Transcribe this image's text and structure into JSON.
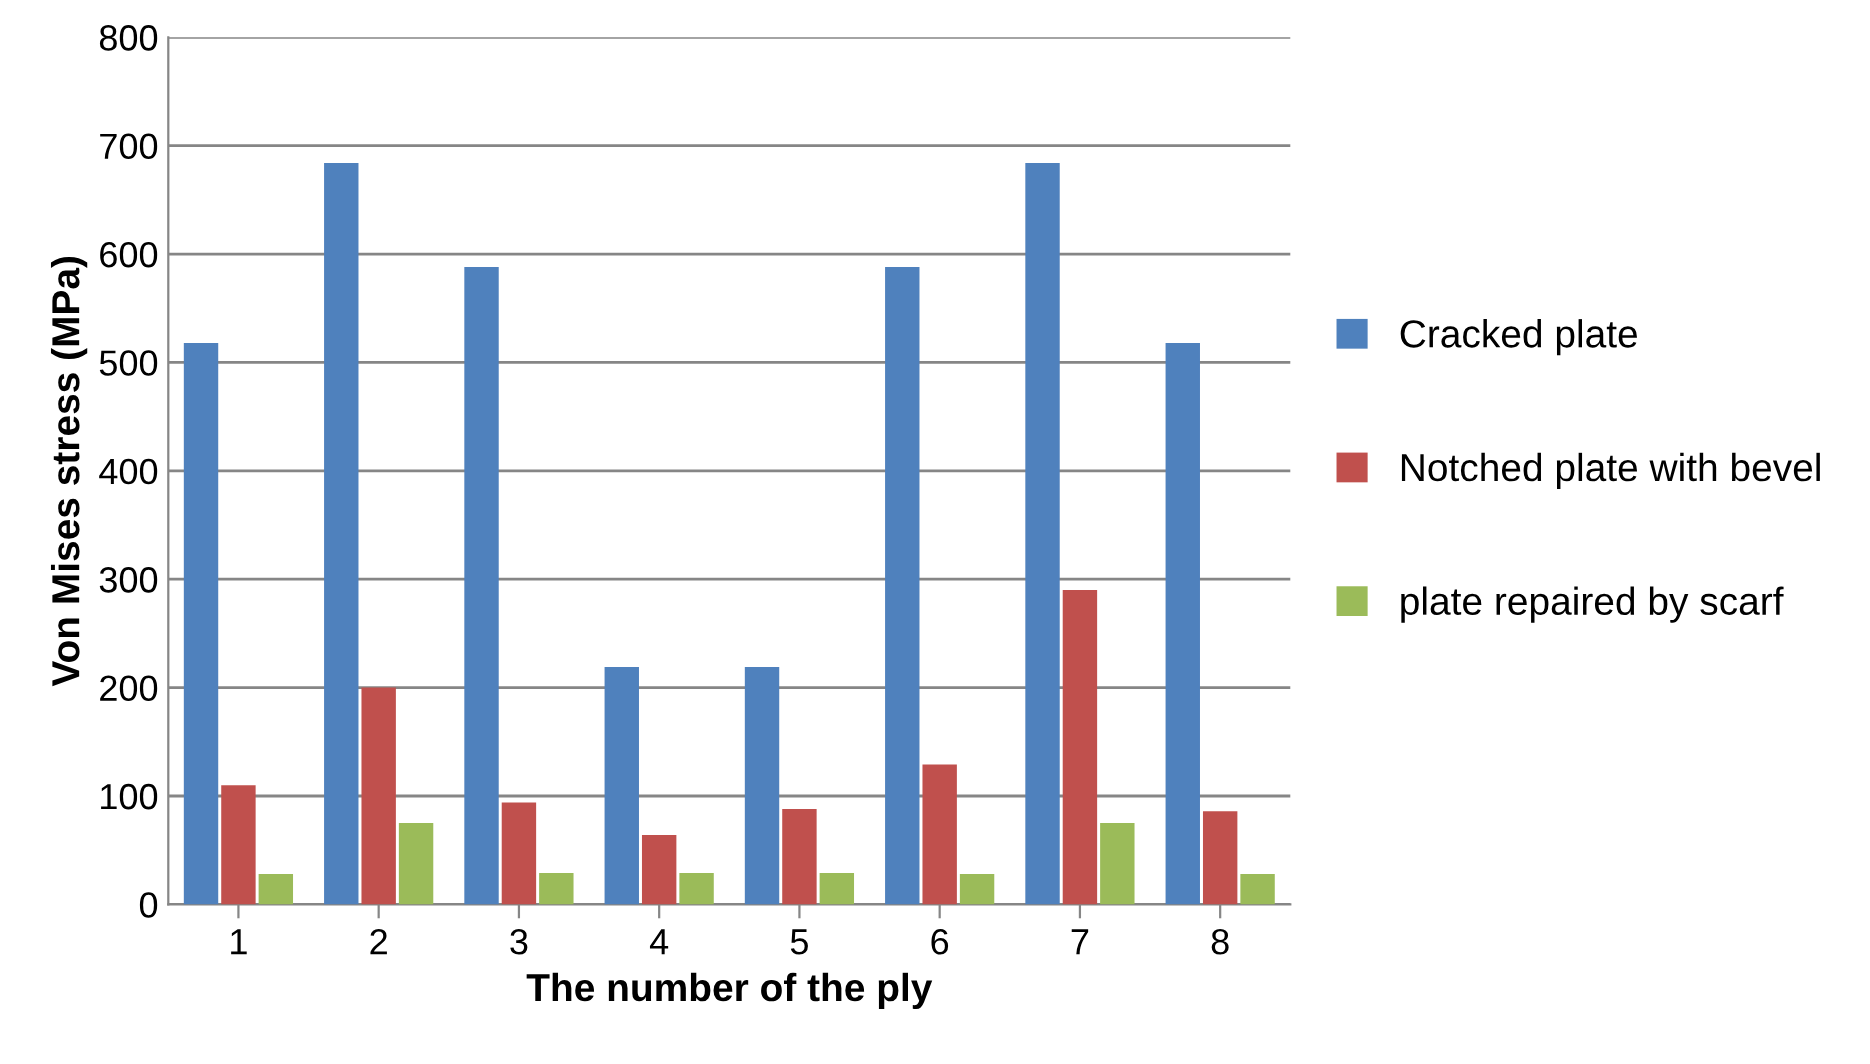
{
  "chart_data": {
    "type": "bar",
    "xlabel": "The number of the ply",
    "ylabel": "Von Mises stress (MPa)",
    "categories": [
      "1",
      "2",
      "3",
      "4",
      "5",
      "6",
      "7",
      "8"
    ],
    "series": [
      {
        "name": "Cracked plate",
        "color": "#4f81bd",
        "values": [
          518,
          684,
          588,
          219,
          219,
          588,
          684,
          518
        ]
      },
      {
        "name": "Notched plate with bevel",
        "color": "#c0504d",
        "values": [
          110,
          200,
          94,
          64,
          88,
          129,
          290,
          86
        ]
      },
      {
        "name": "plate repaired by scarf",
        "color": "#9bbb59",
        "values": [
          28,
          75,
          29,
          29,
          29,
          28,
          75,
          28
        ]
      }
    ],
    "ylim": [
      0,
      800
    ],
    "yticks": [
      0,
      100,
      200,
      300,
      400,
      500,
      600,
      700,
      800
    ],
    "grid": "y",
    "legend": "right"
  }
}
